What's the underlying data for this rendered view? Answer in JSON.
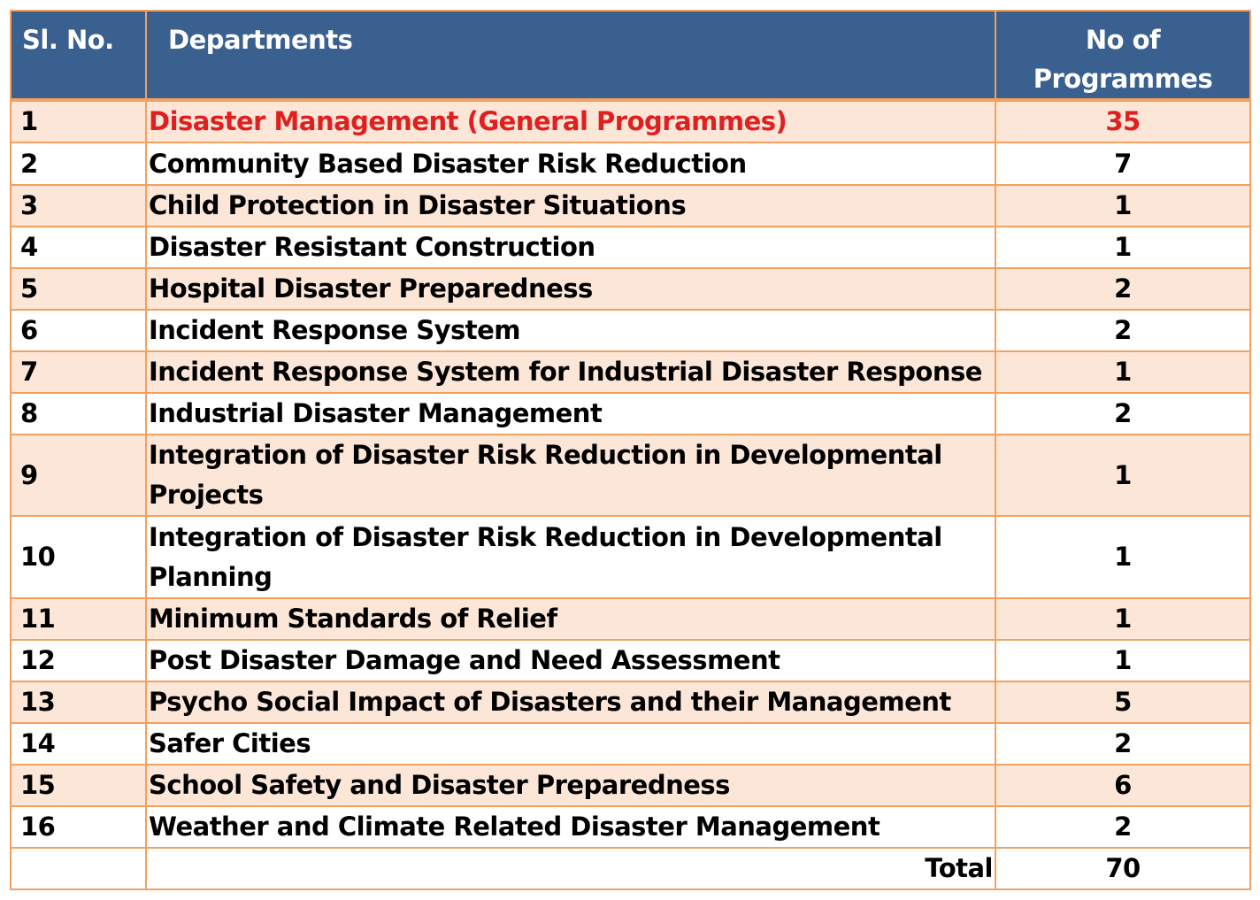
{
  "header": {
    "sl_no": "Sl. No.",
    "departments": "Departments",
    "no_of_programmes_line1": "No of",
    "no_of_programmes_line2": "Programmes"
  },
  "rows": [
    {
      "sl": "1",
      "department": "Disaster Management (General Programmes)",
      "programmes": "35"
    },
    {
      "sl": "2",
      "department": "Community Based Disaster Risk Reduction",
      "programmes": "7"
    },
    {
      "sl": "3",
      "department": "Child Protection in Disaster Situations",
      "programmes": "1"
    },
    {
      "sl": "4",
      "department": "Disaster Resistant Construction",
      "programmes": "1"
    },
    {
      "sl": "5",
      "department": "Hospital Disaster Preparedness",
      "programmes": "2"
    },
    {
      "sl": "6",
      "department": "Incident Response System",
      "programmes": "2"
    },
    {
      "sl": "7",
      "department": "Incident Response System for Industrial Disaster Response",
      "programmes": "1"
    },
    {
      "sl": "8",
      "department": "Industrial Disaster Management",
      "programmes": "2"
    },
    {
      "sl": "9",
      "department": "Integration of Disaster Risk Reduction in Developmental Projects",
      "programmes": "1"
    },
    {
      "sl": "10",
      "department": "Integration of Disaster Risk Reduction in Developmental Planning",
      "programmes": "1"
    },
    {
      "sl": "11",
      "department": "Minimum Standards of Relief",
      "programmes": "1"
    },
    {
      "sl": "12",
      "department": "Post Disaster Damage and Need Assessment",
      "programmes": "1"
    },
    {
      "sl": "13",
      "department": "Psycho Social Impact of Disasters and their Management",
      "programmes": "5"
    },
    {
      "sl": "14",
      "department": "Safer Cities",
      "programmes": "2"
    },
    {
      "sl": "15",
      "department": "School Safety and Disaster Preparedness",
      "programmes": "6"
    },
    {
      "sl": "16",
      "department": "Weather and Climate Related Disaster Management",
      "programmes": "2"
    }
  ],
  "total": {
    "label": "Total",
    "value": "70"
  },
  "colors": {
    "header_bg": "#3a6090",
    "header_text": "#ffffff",
    "row_odd_bg": "#fce6d8",
    "row_even_bg": "#ffffff",
    "border": "#f2a160",
    "highlight_text": "#e02020"
  }
}
